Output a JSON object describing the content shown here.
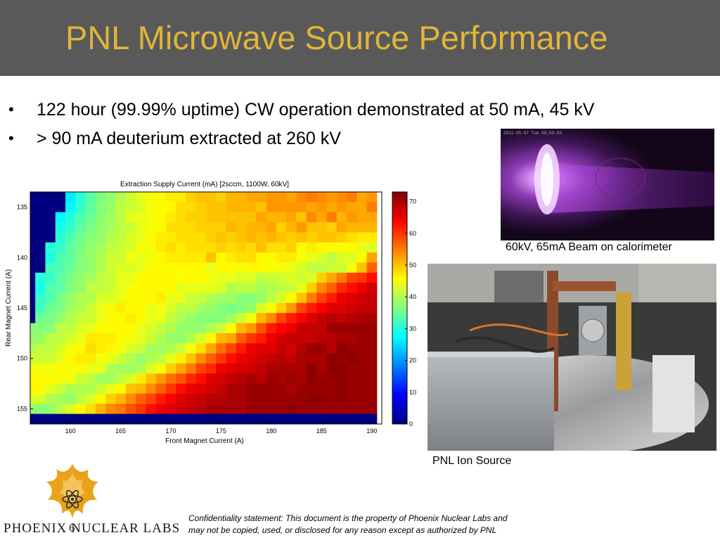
{
  "slide": {
    "title": "PNL Microwave Source Performance",
    "bullets": [
      "122 hour (99.99% uptime) CW operation demonstrated at 50 mA, 45 kV",
      "> 90 mA deuterium extracted at 260 kV"
    ],
    "bullet_symbol": "•",
    "slide_number": "6"
  },
  "photos": {
    "beam": {
      "caption": "60kV, 65mA Beam on calorimeter",
      "glow_color": "#c97cf2"
    },
    "ion_source": {
      "caption": "PNL Ion Source"
    }
  },
  "logo": {
    "company": "Phoenix Nuclear Labs",
    "text_display": "PHOENIX NUCLEAR LABS",
    "brand_color": "#e8a31a"
  },
  "footer": {
    "confidentiality_line1": "Confidentiality statement: This document is the property of Phoenix Nuclear Labs and",
    "confidentiality_line2": "may not be copied, used, or disclosed for any reason except as authorized by PNL"
  },
  "chart_data": {
    "type": "heatmap",
    "title": "Extraction Supply Current (mA) [2sccm, 1100W, 60kV]",
    "xlabel": "Front Magnet Current (A)",
    "ylabel": "Rear Magnet Current (A)",
    "x_range": [
      156,
      191
    ],
    "y_range": [
      133.5,
      156.5
    ],
    "x_ticks": [
      160,
      165,
      170,
      175,
      180,
      185,
      190
    ],
    "y_ticks": [
      135,
      140,
      145,
      150,
      155
    ],
    "colorbar": {
      "min": 0,
      "max": 73,
      "ticks": [
        0,
        10,
        20,
        30,
        40,
        50,
        60,
        70
      ]
    },
    "colormap": "jet",
    "grid": false,
    "x_step": 1,
    "y_step": 1,
    "note": "values estimated from color map",
    "x": [
      156,
      157,
      158,
      159,
      160,
      161,
      162,
      163,
      164,
      165,
      166,
      167,
      168,
      169,
      170,
      171,
      172,
      173,
      174,
      175,
      176,
      177,
      178,
      179,
      180,
      181,
      182,
      183,
      184,
      185,
      186,
      187,
      188,
      189,
      190
    ],
    "y": [
      134,
      135,
      136,
      137,
      138,
      139,
      140,
      141,
      142,
      143,
      144,
      145,
      146,
      147,
      148,
      149,
      150,
      151,
      152,
      153,
      154,
      155,
      156
    ],
    "values": [
      [
        0,
        0,
        0,
        0,
        26,
        30,
        34,
        36,
        38,
        40,
        42,
        44,
        45,
        46,
        47,
        47,
        49,
        50,
        50,
        49,
        51,
        51,
        52,
        52,
        53,
        53,
        52,
        54,
        55,
        54,
        53,
        54,
        55,
        52,
        53
      ],
      [
        0,
        0,
        0,
        0,
        27,
        31,
        34,
        37,
        38,
        41,
        42,
        43,
        45,
        46,
        46,
        48,
        48,
        49,
        50,
        50,
        51,
        51,
        51,
        50,
        53,
        53,
        53,
        53,
        52,
        53,
        52,
        53,
        52,
        52,
        55
      ],
      [
        0,
        0,
        0,
        27,
        30,
        33,
        35,
        37,
        39,
        41,
        44,
        44,
        45,
        46,
        47,
        48,
        49,
        49,
        50,
        50,
        50,
        50,
        50,
        52,
        51,
        51,
        52,
        50,
        54,
        52,
        55,
        51,
        53,
        52,
        52
      ],
      [
        0,
        0,
        0,
        29,
        31,
        34,
        36,
        38,
        39,
        41,
        42,
        44,
        45,
        46,
        48,
        48,
        48,
        49,
        49,
        49,
        51,
        50,
        51,
        51,
        52,
        49,
        51,
        53,
        50,
        50,
        49,
        52,
        51,
        51,
        51
      ],
      [
        0,
        0,
        0,
        30,
        33,
        35,
        37,
        38,
        40,
        41,
        43,
        44,
        46,
        47,
        47,
        48,
        48,
        48,
        49,
        50,
        49,
        50,
        51,
        50,
        51,
        50,
        49,
        50,
        49,
        50,
        50,
        49,
        48,
        47,
        47
      ],
      [
        0,
        0,
        30,
        31,
        34,
        36,
        38,
        39,
        41,
        42,
        43,
        45,
        45,
        47,
        48,
        47,
        48,
        48,
        48,
        49,
        48,
        49,
        48,
        50,
        48,
        48,
        49,
        46,
        47,
        46,
        46,
        45,
        46,
        44,
        43
      ],
      [
        0,
        0,
        29,
        33,
        34,
        37,
        38,
        40,
        42,
        42,
        45,
        44,
        45,
        46,
        47,
        47,
        47,
        47,
        50,
        46,
        47,
        48,
        48,
        46,
        46,
        47,
        47,
        45,
        44,
        43,
        41,
        43,
        43,
        46,
        52
      ],
      [
        0,
        0,
        32,
        33,
        35,
        37,
        38,
        40,
        42,
        43,
        43,
        44,
        46,
        46,
        46,
        46,
        46,
        46,
        44,
        46,
        46,
        45,
        46,
        46,
        45,
        45,
        44,
        43,
        41,
        41,
        42,
        42,
        45,
        50,
        57
      ],
      [
        0,
        30,
        31,
        34,
        36,
        38,
        39,
        41,
        42,
        44,
        44,
        46,
        46,
        46,
        46,
        45,
        46,
        46,
        45,
        44,
        44,
        43,
        43,
        41,
        42,
        42,
        43,
        42,
        43,
        49,
        52,
        55,
        59,
        60,
        63
      ],
      [
        0,
        29,
        33,
        34,
        37,
        38,
        41,
        41,
        42,
        44,
        45,
        46,
        46,
        46,
        46,
        44,
        44,
        44,
        44,
        43,
        40,
        41,
        41,
        39,
        40,
        41,
        42,
        44,
        49,
        54,
        57,
        61,
        63,
        65,
        67
      ],
      [
        0,
        31,
        33,
        36,
        38,
        40,
        40,
        43,
        43,
        44,
        46,
        46,
        46,
        47,
        44,
        44,
        42,
        42,
        40,
        39,
        39,
        37,
        37,
        38,
        41,
        43,
        46,
        50,
        55,
        59,
        62,
        65,
        66,
        67,
        68
      ],
      [
        0,
        32,
        35,
        36,
        39,
        40,
        42,
        44,
        45,
        47,
        46,
        46,
        44,
        45,
        43,
        41,
        41,
        39,
        38,
        37,
        36,
        37,
        38,
        43,
        46,
        49,
        53,
        59,
        62,
        64,
        66,
        66,
        67,
        68,
        68
      ],
      [
        0,
        35,
        36,
        38,
        40,
        42,
        42,
        44,
        46,
        46,
        47,
        46,
        44,
        44,
        41,
        40,
        38,
        37,
        37,
        37,
        39,
        42,
        45,
        51,
        54,
        59,
        62,
        64,
        66,
        68,
        69,
        68,
        69,
        70,
        70
      ],
      [
        37,
        37,
        37,
        41,
        41,
        43,
        44,
        46,
        46,
        46,
        46,
        44,
        43,
        41,
        40,
        38,
        38,
        38,
        40,
        42,
        46,
        51,
        53,
        58,
        62,
        64,
        65,
        68,
        68,
        68,
        71,
        71,
        71,
        71,
        71
      ],
      [
        38,
        38,
        41,
        41,
        43,
        44,
        47,
        47,
        47,
        46,
        45,
        44,
        42,
        40,
        38,
        38,
        40,
        43,
        46,
        51,
        52,
        57,
        60,
        62,
        65,
        67,
        68,
        68,
        68,
        69,
        69,
        70,
        70,
        71,
        71
      ],
      [
        40,
        41,
        41,
        43,
        45,
        46,
        48,
        47,
        46,
        45,
        43,
        42,
        39,
        39,
        40,
        42,
        45,
        48,
        52,
        56,
        59,
        62,
        65,
        66,
        66,
        68,
        67,
        69,
        71,
        71,
        69,
        72,
        71,
        71,
        71
      ],
      [
        42,
        42,
        42,
        44,
        46,
        47,
        47,
        45,
        44,
        42,
        40,
        38,
        40,
        41,
        44,
        47,
        50,
        54,
        57,
        60,
        63,
        65,
        66,
        67,
        68,
        69,
        68,
        70,
        70,
        70,
        72,
        71,
        72,
        71,
        71
      ],
      [
        44,
        45,
        45,
        46,
        45,
        46,
        44,
        44,
        40,
        39,
        39,
        40,
        43,
        46,
        49,
        52,
        55,
        59,
        61,
        65,
        66,
        67,
        67,
        68,
        70,
        70,
        70,
        70,
        72,
        70,
        72,
        72,
        71,
        71,
        71
      ],
      [
        46,
        46,
        46,
        45,
        45,
        42,
        41,
        39,
        39,
        41,
        43,
        47,
        50,
        53,
        56,
        58,
        61,
        63,
        66,
        67,
        68,
        69,
        70,
        69,
        71,
        70,
        71,
        70,
        72,
        71,
        71,
        72,
        71,
        71,
        71
      ],
      [
        46,
        46,
        44,
        42,
        40,
        40,
        40,
        42,
        44,
        46,
        50,
        51,
        54,
        57,
        60,
        63,
        65,
        66,
        67,
        68,
        70,
        70,
        71,
        71,
        71,
        71,
        70,
        71,
        71,
        71,
        71,
        72,
        71,
        71,
        71
      ],
      [
        43,
        43,
        40,
        39,
        38,
        41,
        43,
        46,
        49,
        51,
        54,
        57,
        59,
        62,
        64,
        66,
        67,
        68,
        69,
        69,
        70,
        70,
        71,
        71,
        71,
        71,
        71,
        71,
        72,
        72,
        71,
        72,
        71,
        71,
        71
      ],
      [
        38,
        37,
        38,
        41,
        43,
        46,
        48,
        51,
        54,
        55,
        58,
        60,
        63,
        65,
        66,
        67,
        68,
        69,
        70,
        70,
        70,
        70,
        71,
        71,
        71,
        71,
        72,
        71,
        71,
        71,
        71,
        71,
        71,
        71,
        71
      ],
      [
        0,
        0,
        0,
        0,
        0,
        0,
        0,
        0,
        0,
        0,
        0,
        0,
        0,
        0,
        0,
        0,
        0,
        0,
        0,
        0,
        0,
        0,
        0,
        0,
        0,
        0,
        0,
        0,
        0,
        0,
        0,
        0,
        0,
        0,
        0
      ]
    ]
  }
}
